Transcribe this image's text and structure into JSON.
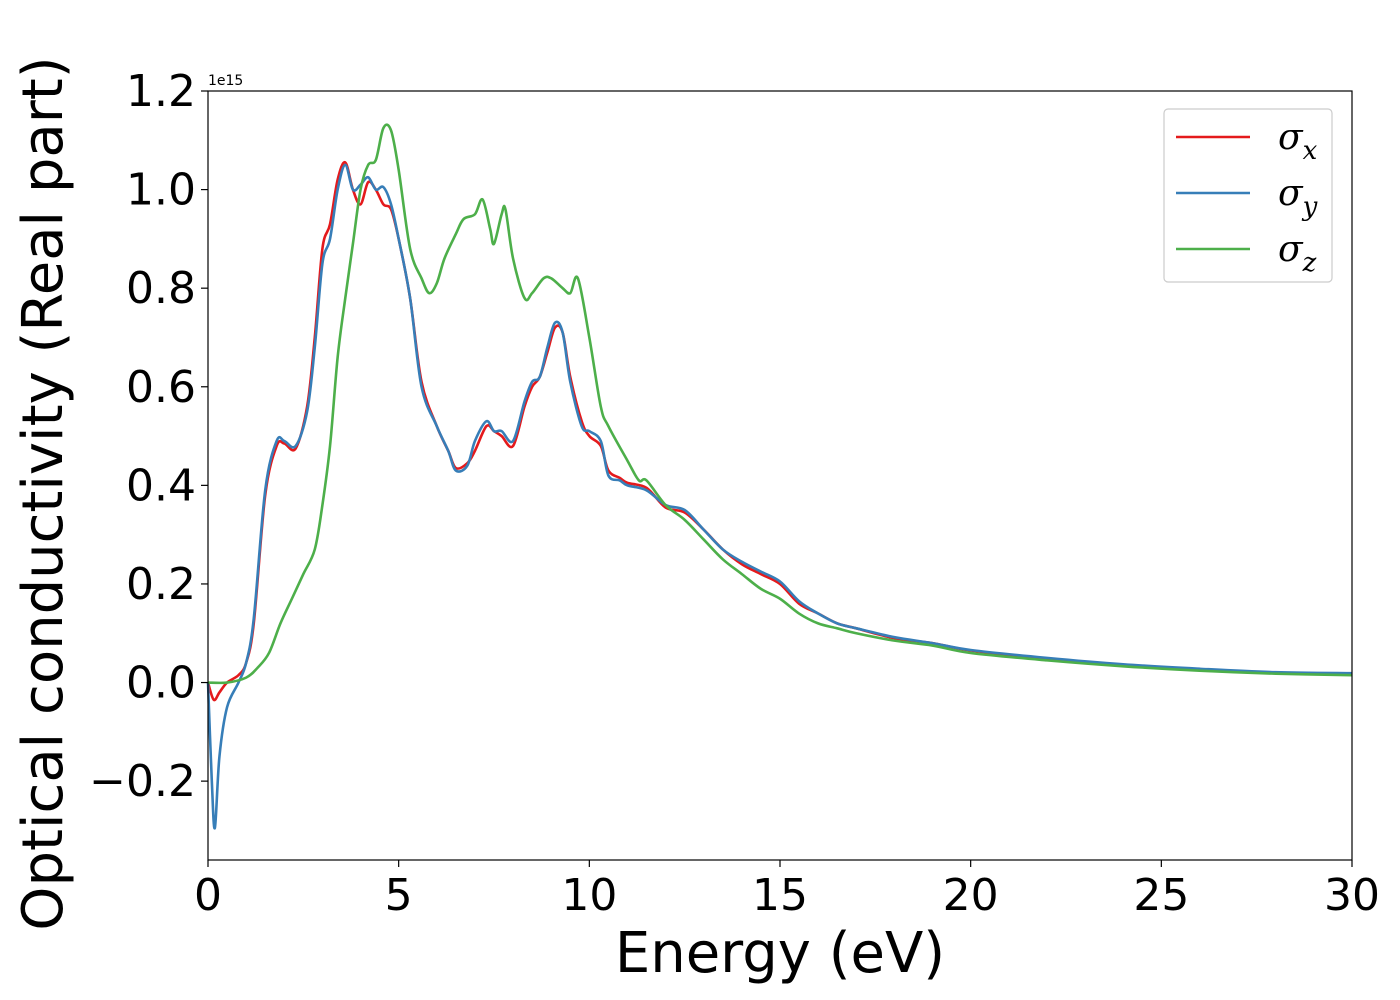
{
  "chart_data": {
    "type": "line",
    "xlabel": "Energy (eV)",
    "ylabel": "Optical conductivity (Real part)",
    "y_offset_text": "1e15",
    "xlim": [
      0,
      30
    ],
    "ylim": [
      -0.36,
      1.2
    ],
    "x_ticks": [
      0,
      5,
      10,
      15,
      20,
      25,
      30
    ],
    "y_ticks": [
      -0.2,
      0.0,
      0.2,
      0.4,
      0.6,
      0.8,
      1.0,
      1.2
    ],
    "x_tick_labels": [
      "0",
      "5",
      "10",
      "15",
      "20",
      "25",
      "30"
    ],
    "y_tick_labels": [
      "−0.2",
      "0.0",
      "0.2",
      "0.4",
      "0.6",
      "0.8",
      "1.0",
      "1.2"
    ],
    "grid": false,
    "legend_position": "top-right",
    "series": [
      {
        "name": "σx",
        "symbol": "σ",
        "subscript": "x",
        "color": "#e41a1c",
        "points": [
          [
            0,
            0
          ],
          [
            0.15,
            -0.035
          ],
          [
            0.3,
            -0.02
          ],
          [
            0.5,
            0.0
          ],
          [
            0.8,
            0.015
          ],
          [
            1.0,
            0.04
          ],
          [
            1.2,
            0.12
          ],
          [
            1.5,
            0.38
          ],
          [
            1.8,
            0.48
          ],
          [
            2.0,
            0.485
          ],
          [
            2.3,
            0.475
          ],
          [
            2.6,
            0.56
          ],
          [
            2.8,
            0.7
          ],
          [
            3.0,
            0.88
          ],
          [
            3.2,
            0.93
          ],
          [
            3.4,
            1.02
          ],
          [
            3.6,
            1.055
          ],
          [
            3.8,
            1.0
          ],
          [
            4.0,
            0.97
          ],
          [
            4.2,
            1.015
          ],
          [
            4.4,
            1.0
          ],
          [
            4.6,
            0.97
          ],
          [
            4.8,
            0.96
          ],
          [
            5.0,
            0.9
          ],
          [
            5.3,
            0.78
          ],
          [
            5.6,
            0.61
          ],
          [
            6.0,
            0.52
          ],
          [
            6.3,
            0.47
          ],
          [
            6.5,
            0.435
          ],
          [
            6.8,
            0.445
          ],
          [
            7.0,
            0.47
          ],
          [
            7.3,
            0.52
          ],
          [
            7.5,
            0.51
          ],
          [
            7.7,
            0.5
          ],
          [
            8.0,
            0.48
          ],
          [
            8.3,
            0.56
          ],
          [
            8.5,
            0.6
          ],
          [
            8.7,
            0.62
          ],
          [
            8.9,
            0.67
          ],
          [
            9.1,
            0.72
          ],
          [
            9.3,
            0.71
          ],
          [
            9.5,
            0.62
          ],
          [
            9.8,
            0.53
          ],
          [
            10.0,
            0.5
          ],
          [
            10.3,
            0.48
          ],
          [
            10.5,
            0.43
          ],
          [
            10.8,
            0.415
          ],
          [
            11.0,
            0.405
          ],
          [
            11.5,
            0.395
          ],
          [
            12.0,
            0.355
          ],
          [
            12.5,
            0.345
          ],
          [
            13.0,
            0.31
          ],
          [
            13.5,
            0.27
          ],
          [
            14.0,
            0.24
          ],
          [
            14.5,
            0.22
          ],
          [
            15.0,
            0.2
          ],
          [
            15.5,
            0.16
          ],
          [
            16.0,
            0.14
          ],
          [
            16.5,
            0.12
          ],
          [
            17.0,
            0.11
          ],
          [
            18.0,
            0.09
          ],
          [
            19.0,
            0.08
          ],
          [
            20.0,
            0.065
          ],
          [
            22.0,
            0.048
          ],
          [
            24.0,
            0.036
          ],
          [
            26.0,
            0.027
          ],
          [
            28.0,
            0.02
          ],
          [
            30.0,
            0.018
          ]
        ]
      },
      {
        "name": "σy",
        "symbol": "σ",
        "subscript": "y",
        "color": "#377eb8",
        "points": [
          [
            0,
            0
          ],
          [
            0.1,
            -0.2
          ],
          [
            0.18,
            -0.295
          ],
          [
            0.3,
            -0.15
          ],
          [
            0.5,
            -0.05
          ],
          [
            0.8,
            0.0
          ],
          [
            1.0,
            0.04
          ],
          [
            1.2,
            0.13
          ],
          [
            1.5,
            0.39
          ],
          [
            1.8,
            0.49
          ],
          [
            2.0,
            0.49
          ],
          [
            2.3,
            0.48
          ],
          [
            2.6,
            0.55
          ],
          [
            2.8,
            0.68
          ],
          [
            3.0,
            0.85
          ],
          [
            3.2,
            0.9
          ],
          [
            3.4,
            1.0
          ],
          [
            3.6,
            1.05
          ],
          [
            3.8,
            1.0
          ],
          [
            4.0,
            1.01
          ],
          [
            4.2,
            1.025
          ],
          [
            4.4,
            1.0
          ],
          [
            4.6,
            1.005
          ],
          [
            4.8,
            0.97
          ],
          [
            5.0,
            0.9
          ],
          [
            5.3,
            0.78
          ],
          [
            5.6,
            0.6
          ],
          [
            6.0,
            0.52
          ],
          [
            6.3,
            0.47
          ],
          [
            6.5,
            0.43
          ],
          [
            6.8,
            0.44
          ],
          [
            7.0,
            0.49
          ],
          [
            7.3,
            0.53
          ],
          [
            7.5,
            0.51
          ],
          [
            7.7,
            0.51
          ],
          [
            8.0,
            0.49
          ],
          [
            8.3,
            0.57
          ],
          [
            8.5,
            0.61
          ],
          [
            8.7,
            0.62
          ],
          [
            8.9,
            0.68
          ],
          [
            9.1,
            0.73
          ],
          [
            9.3,
            0.71
          ],
          [
            9.5,
            0.61
          ],
          [
            9.8,
            0.52
          ],
          [
            10.0,
            0.51
          ],
          [
            10.3,
            0.49
          ],
          [
            10.5,
            0.42
          ],
          [
            10.8,
            0.41
          ],
          [
            11.0,
            0.4
          ],
          [
            11.5,
            0.39
          ],
          [
            12.0,
            0.36
          ],
          [
            12.5,
            0.35
          ],
          [
            13.0,
            0.31
          ],
          [
            13.5,
            0.27
          ],
          [
            14.0,
            0.245
          ],
          [
            14.5,
            0.225
          ],
          [
            15.0,
            0.205
          ],
          [
            15.5,
            0.165
          ],
          [
            16.0,
            0.14
          ],
          [
            16.5,
            0.12
          ],
          [
            17.0,
            0.11
          ],
          [
            18.0,
            0.092
          ],
          [
            19.0,
            0.08
          ],
          [
            20.0,
            0.066
          ],
          [
            22.0,
            0.05
          ],
          [
            24.0,
            0.037
          ],
          [
            26.0,
            0.028
          ],
          [
            28.0,
            0.021
          ],
          [
            30.0,
            0.019
          ]
        ]
      },
      {
        "name": "σz",
        "symbol": "σ",
        "subscript": "z",
        "color": "#4daf4a",
        "points": [
          [
            0,
            0
          ],
          [
            0.5,
            0.0
          ],
          [
            1.0,
            0.01
          ],
          [
            1.3,
            0.03
          ],
          [
            1.6,
            0.06
          ],
          [
            1.9,
            0.12
          ],
          [
            2.2,
            0.17
          ],
          [
            2.5,
            0.22
          ],
          [
            2.8,
            0.27
          ],
          [
            3.0,
            0.36
          ],
          [
            3.2,
            0.48
          ],
          [
            3.4,
            0.66
          ],
          [
            3.6,
            0.78
          ],
          [
            3.8,
            0.89
          ],
          [
            4.0,
            1.0
          ],
          [
            4.2,
            1.05
          ],
          [
            4.4,
            1.06
          ],
          [
            4.6,
            1.125
          ],
          [
            4.8,
            1.12
          ],
          [
            5.0,
            1.04
          ],
          [
            5.3,
            0.88
          ],
          [
            5.6,
            0.82
          ],
          [
            5.8,
            0.79
          ],
          [
            6.0,
            0.81
          ],
          [
            6.2,
            0.86
          ],
          [
            6.5,
            0.91
          ],
          [
            6.7,
            0.94
          ],
          [
            7.0,
            0.95
          ],
          [
            7.2,
            0.98
          ],
          [
            7.4,
            0.92
          ],
          [
            7.5,
            0.89
          ],
          [
            7.7,
            0.95
          ],
          [
            7.8,
            0.96
          ],
          [
            8.0,
            0.86
          ],
          [
            8.3,
            0.78
          ],
          [
            8.5,
            0.79
          ],
          [
            8.8,
            0.82
          ],
          [
            9.0,
            0.82
          ],
          [
            9.3,
            0.8
          ],
          [
            9.5,
            0.79
          ],
          [
            9.7,
            0.82
          ],
          [
            10.0,
            0.7
          ],
          [
            10.3,
            0.56
          ],
          [
            10.5,
            0.52
          ],
          [
            11.0,
            0.45
          ],
          [
            11.3,
            0.41
          ],
          [
            11.5,
            0.41
          ],
          [
            12.0,
            0.36
          ],
          [
            12.5,
            0.33
          ],
          [
            13.0,
            0.29
          ],
          [
            13.5,
            0.25
          ],
          [
            14.0,
            0.22
          ],
          [
            14.5,
            0.19
          ],
          [
            15.0,
            0.17
          ],
          [
            15.5,
            0.14
          ],
          [
            16.0,
            0.12
          ],
          [
            16.5,
            0.11
          ],
          [
            17.0,
            0.1
          ],
          [
            18.0,
            0.085
          ],
          [
            19.0,
            0.075
          ],
          [
            20.0,
            0.06
          ],
          [
            22.0,
            0.045
          ],
          [
            24.0,
            0.033
          ],
          [
            26.0,
            0.024
          ],
          [
            28.0,
            0.018
          ],
          [
            30.0,
            0.015
          ]
        ]
      }
    ]
  }
}
